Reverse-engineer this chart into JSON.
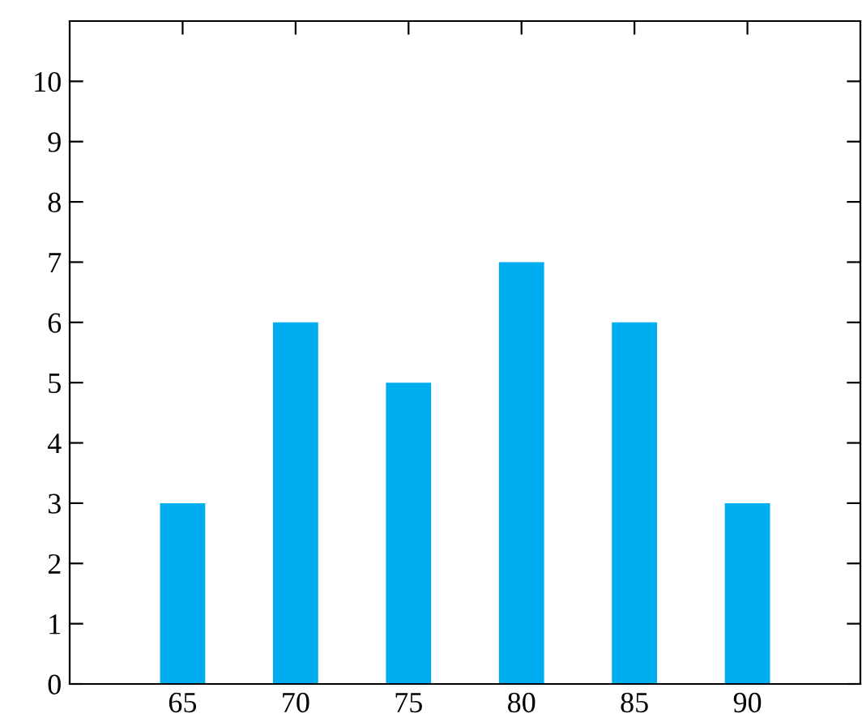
{
  "chart_data": {
    "type": "bar",
    "x": [
      65,
      70,
      75,
      80,
      85,
      90
    ],
    "values": [
      3,
      6,
      5,
      7,
      6,
      3
    ],
    "color": "#00adef",
    "xlim": [
      60,
      95
    ],
    "xticks": [
      65,
      70,
      75,
      80,
      85,
      90
    ],
    "ylim": [
      0,
      11
    ],
    "yticks": [
      0,
      1,
      2,
      3,
      4,
      5,
      6,
      7,
      8,
      9,
      10
    ],
    "grid": false
  }
}
